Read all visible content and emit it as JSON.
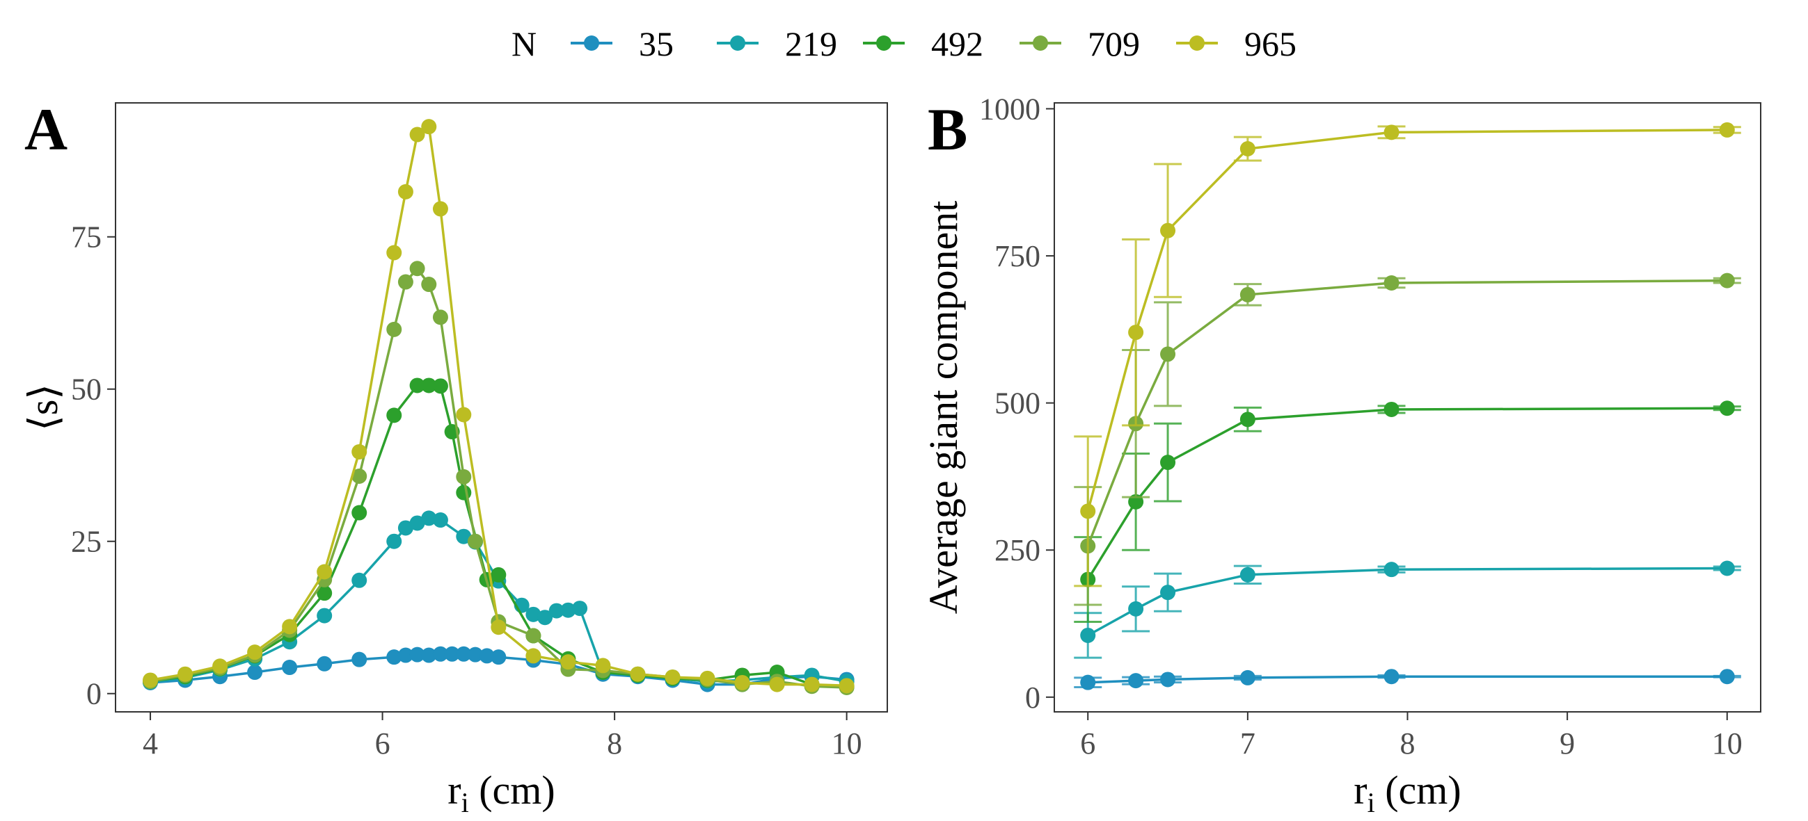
{
  "legend": {
    "title": "N",
    "entries": [
      "35",
      "219",
      "492",
      "709",
      "965"
    ]
  },
  "colors": {
    "35": "#1f8fbf",
    "219": "#17a3aa",
    "492": "#2ca02c",
    "709": "#7aab3f",
    "965": "#bcbd22"
  },
  "chart_data": [
    {
      "type": "line",
      "panel_letter": "A",
      "xlabel": "r_i (cm)",
      "ylabel": "⟨s⟩",
      "xlim": [
        3.7,
        10.35
      ],
      "ylim": [
        -3,
        97
      ],
      "xticks": [
        4,
        6,
        8,
        10
      ],
      "yticks": [
        0,
        25,
        50,
        75
      ],
      "grid": false,
      "markers": true,
      "series": [
        {
          "name": "35",
          "points": [
            [
              4.0,
              1.8
            ],
            [
              4.3,
              2.2
            ],
            [
              4.6,
              2.8
            ],
            [
              4.9,
              3.5
            ],
            [
              5.2,
              4.3
            ],
            [
              5.5,
              4.9
            ],
            [
              5.8,
              5.6
            ],
            [
              6.1,
              6.0
            ],
            [
              6.2,
              6.3
            ],
            [
              6.3,
              6.4
            ],
            [
              6.4,
              6.3
            ],
            [
              6.5,
              6.5
            ],
            [
              6.6,
              6.5
            ],
            [
              6.7,
              6.5
            ],
            [
              6.8,
              6.4
            ],
            [
              6.9,
              6.2
            ],
            [
              7.0,
              6.0
            ],
            [
              7.3,
              5.5
            ],
            [
              7.6,
              4.8
            ],
            [
              7.9,
              3.2
            ],
            [
              8.2,
              2.8
            ],
            [
              8.5,
              2.2
            ],
            [
              8.8,
              1.5
            ],
            [
              9.1,
              1.5
            ],
            [
              9.4,
              2.5
            ],
            [
              9.7,
              2.8
            ],
            [
              10.0,
              2.3
            ]
          ]
        },
        {
          "name": "219",
          "points": [
            [
              4.0,
              1.9
            ],
            [
              4.3,
              2.6
            ],
            [
              4.6,
              3.9
            ],
            [
              4.9,
              5.7
            ],
            [
              5.2,
              8.5
            ],
            [
              5.5,
              12.8
            ],
            [
              5.8,
              18.6
            ],
            [
              6.1,
              25.0
            ],
            [
              6.2,
              27.2
            ],
            [
              6.3,
              28.0
            ],
            [
              6.4,
              28.8
            ],
            [
              6.5,
              28.5
            ],
            [
              6.7,
              25.8
            ],
            [
              6.8,
              24.9
            ],
            [
              7.0,
              18.5
            ],
            [
              7.2,
              14.5
            ],
            [
              7.3,
              13.0
            ],
            [
              7.4,
              12.5
            ],
            [
              7.5,
              13.6
            ],
            [
              7.6,
              13.7
            ],
            [
              7.7,
              14.0
            ],
            [
              7.9,
              3.5
            ],
            [
              8.2,
              3.0
            ],
            [
              8.5,
              2.5
            ],
            [
              8.8,
              2.0
            ],
            [
              9.1,
              2.2
            ],
            [
              9.4,
              2.7
            ],
            [
              9.7,
              3.0
            ],
            [
              10.0,
              2.0
            ]
          ]
        },
        {
          "name": "492",
          "points": [
            [
              4.0,
              2.0
            ],
            [
              4.3,
              2.8
            ],
            [
              4.6,
              4.1
            ],
            [
              4.9,
              6.2
            ],
            [
              5.2,
              9.7
            ],
            [
              5.5,
              16.5
            ],
            [
              5.8,
              29.7
            ],
            [
              6.1,
              45.7
            ],
            [
              6.3,
              50.6
            ],
            [
              6.4,
              50.6
            ],
            [
              6.5,
              50.5
            ],
            [
              6.6,
              43.0
            ],
            [
              6.7,
              33.0
            ],
            [
              6.9,
              18.7
            ],
            [
              7.0,
              19.5
            ],
            [
              7.3,
              9.5
            ],
            [
              7.6,
              5.7
            ],
            [
              7.9,
              3.5
            ],
            [
              8.2,
              3.0
            ],
            [
              8.5,
              2.5
            ],
            [
              8.8,
              2.2
            ],
            [
              9.1,
              3.0
            ],
            [
              9.4,
              3.5
            ],
            [
              9.7,
              1.5
            ],
            [
              10.0,
              1.2
            ]
          ]
        },
        {
          "name": "709",
          "points": [
            [
              4.0,
              2.0
            ],
            [
              4.3,
              3.0
            ],
            [
              4.6,
              4.2
            ],
            [
              4.9,
              6.3
            ],
            [
              5.2,
              10.4
            ],
            [
              5.5,
              18.7
            ],
            [
              5.8,
              35.7
            ],
            [
              6.1,
              59.8
            ],
            [
              6.2,
              67.6
            ],
            [
              6.3,
              69.8
            ],
            [
              6.4,
              67.2
            ],
            [
              6.5,
              61.8
            ],
            [
              6.7,
              35.6
            ],
            [
              6.8,
              25.0
            ],
            [
              7.0,
              11.8
            ],
            [
              7.3,
              9.5
            ],
            [
              7.6,
              4.0
            ],
            [
              7.9,
              3.8
            ],
            [
              8.2,
              3.2
            ],
            [
              8.5,
              2.7
            ],
            [
              8.8,
              2.3
            ],
            [
              9.1,
              1.5
            ],
            [
              9.4,
              2.0
            ],
            [
              9.7,
              1.2
            ],
            [
              10.0,
              1.0
            ]
          ]
        },
        {
          "name": "965",
          "points": [
            [
              4.0,
              2.2
            ],
            [
              4.3,
              3.2
            ],
            [
              4.6,
              4.5
            ],
            [
              4.9,
              6.8
            ],
            [
              5.2,
              11.0
            ],
            [
              5.5,
              20.0
            ],
            [
              5.8,
              39.7
            ],
            [
              6.1,
              72.4
            ],
            [
              6.2,
              82.4
            ],
            [
              6.3,
              91.8
            ],
            [
              6.4,
              93.1
            ],
            [
              6.5,
              79.6
            ],
            [
              6.7,
              45.8
            ],
            [
              7.0,
              10.9
            ],
            [
              7.3,
              6.2
            ],
            [
              7.6,
              5.2
            ],
            [
              7.9,
              4.6
            ],
            [
              8.2,
              3.2
            ],
            [
              8.5,
              2.7
            ],
            [
              8.8,
              2.5
            ],
            [
              9.1,
              1.8
            ],
            [
              9.4,
              1.5
            ],
            [
              9.7,
              1.5
            ],
            [
              10.0,
              1.3
            ]
          ]
        }
      ]
    },
    {
      "type": "line",
      "panel_letter": "B",
      "xlabel": "r_i (cm)",
      "ylabel": "Average giant component",
      "xlim": [
        5.79,
        10.21
      ],
      "ylim": [
        -25,
        1010
      ],
      "xticks": [
        6,
        7,
        8,
        9,
        10
      ],
      "yticks": [
        0,
        250,
        500,
        750,
        1000
      ],
      "grid": false,
      "markers": true,
      "error_bars": true,
      "series": [
        {
          "name": "35",
          "points": [
            [
              6.0,
              25
            ],
            [
              6.3,
              28
            ],
            [
              6.5,
              30
            ],
            [
              7.0,
              33
            ],
            [
              7.9,
              35
            ],
            [
              10.0,
              35
            ]
          ],
          "errors": [
            8,
            6,
            5,
            3,
            2,
            1
          ]
        },
        {
          "name": "219",
          "points": [
            [
              6.0,
              105
            ],
            [
              6.3,
              150
            ],
            [
              6.5,
              178
            ],
            [
              7.0,
              208
            ],
            [
              7.9,
              217
            ],
            [
              10.0,
              219
            ]
          ],
          "errors": [
            38,
            38,
            32,
            15,
            5,
            3
          ]
        },
        {
          "name": "492",
          "points": [
            [
              6.0,
              200
            ],
            [
              6.3,
              332
            ],
            [
              6.5,
              399
            ],
            [
              7.0,
              472
            ],
            [
              7.9,
              489
            ],
            [
              10.0,
              491
            ]
          ],
          "errors": [
            72,
            82,
            66,
            20,
            6,
            3
          ]
        },
        {
          "name": "709",
          "points": [
            [
              6.0,
              257
            ],
            [
              6.3,
              465
            ],
            [
              6.5,
              583
            ],
            [
              7.0,
              684
            ],
            [
              7.9,
              704
            ],
            [
              10.0,
              708
            ]
          ],
          "errors": [
            100,
            125,
            88,
            18,
            8,
            4
          ]
        },
        {
          "name": "965",
          "points": [
            [
              6.0,
              316
            ],
            [
              6.3,
              620
            ],
            [
              6.5,
              793
            ],
            [
              7.0,
              932
            ],
            [
              7.9,
              960
            ],
            [
              10.0,
              964
            ]
          ],
          "errors": [
            127,
            158,
            113,
            20,
            10,
            5
          ]
        }
      ]
    }
  ]
}
